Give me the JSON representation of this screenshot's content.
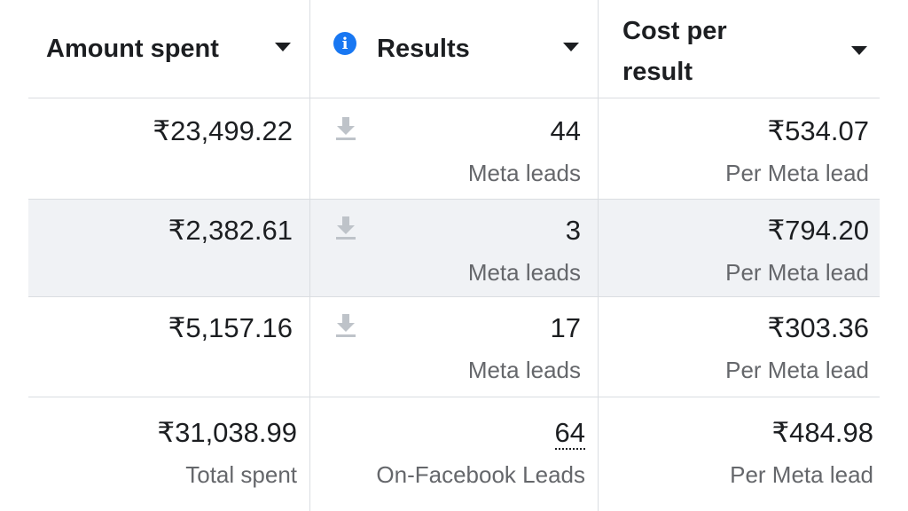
{
  "headers": {
    "amount_spent": "Amount spent",
    "results": "Results",
    "cost_per_result_line1": "Cost per",
    "cost_per_result_line2": "result",
    "info_icon_glyph": "i"
  },
  "rows": [
    {
      "amount": "₹23,499.22",
      "results": "44",
      "results_label": "Meta leads",
      "cost": "₹534.07",
      "cost_label": "Per Meta lead"
    },
    {
      "amount": "₹2,382.61",
      "results": "3",
      "results_label": "Meta leads",
      "cost": "₹794.20",
      "cost_label": "Per Meta lead"
    },
    {
      "amount": "₹5,157.16",
      "results": "17",
      "results_label": "Meta leads",
      "cost": "₹303.36",
      "cost_label": "Per Meta lead"
    }
  ],
  "totals": {
    "amount": "₹31,038.99",
    "amount_label": "Total spent",
    "results": "64",
    "results_label": "On-Facebook Leads",
    "cost": "₹484.98",
    "cost_label": "Per Meta lead"
  },
  "colors": {
    "info_icon": "#1877f2",
    "striped_row": "#f0f2f5",
    "divider": "#dadde1",
    "secondary_text": "#65676b",
    "download_icon": "#bec3c9"
  },
  "icons": {
    "header_sort": "caret-down-icon",
    "results_info": "info-icon",
    "row_result": "download-icon"
  }
}
